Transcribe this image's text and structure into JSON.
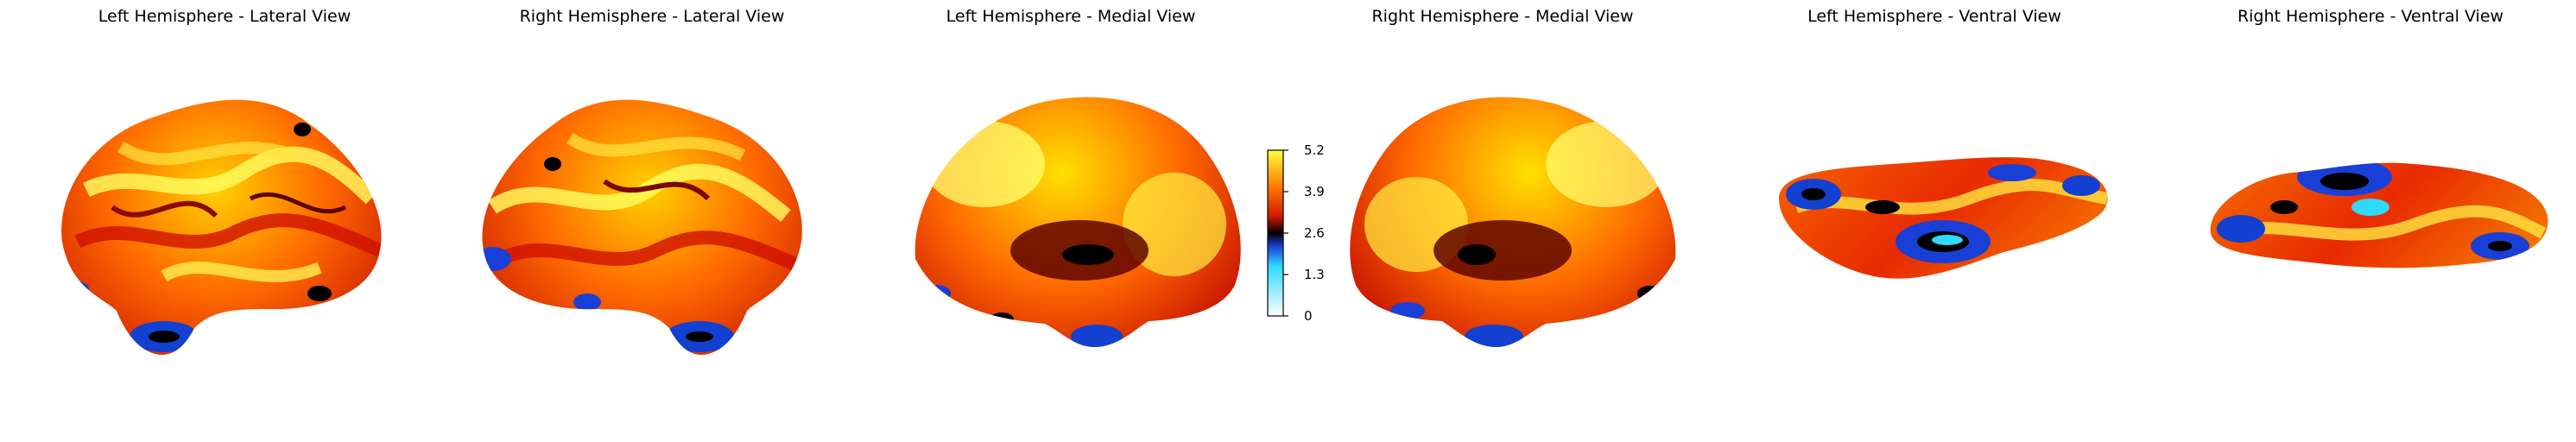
{
  "figure": {
    "panels": [
      {
        "title": "Left Hemisphere - Lateral View",
        "view": "lateral-left"
      },
      {
        "title": "Right Hemisphere - Lateral View",
        "view": "lateral-right"
      },
      {
        "title": "Left Hemisphere - Medial View",
        "view": "medial-left"
      },
      {
        "title": "Right Hemisphere - Medial View",
        "view": "medial-right"
      },
      {
        "title": "Left Hemisphere - Ventral View",
        "view": "ventral-left"
      },
      {
        "title": "Right Hemisphere - Ventral View",
        "view": "ventral-right"
      }
    ],
    "colorbar": {
      "ticks": [
        "5.2",
        "3.9",
        "2.6",
        "1.3",
        "0"
      ],
      "colors": [
        "#ffff40",
        "#ff7a00",
        "#d11800",
        "#000000",
        "#1a3fd6",
        "#2fd9ff",
        "#ffffff"
      ]
    }
  }
}
